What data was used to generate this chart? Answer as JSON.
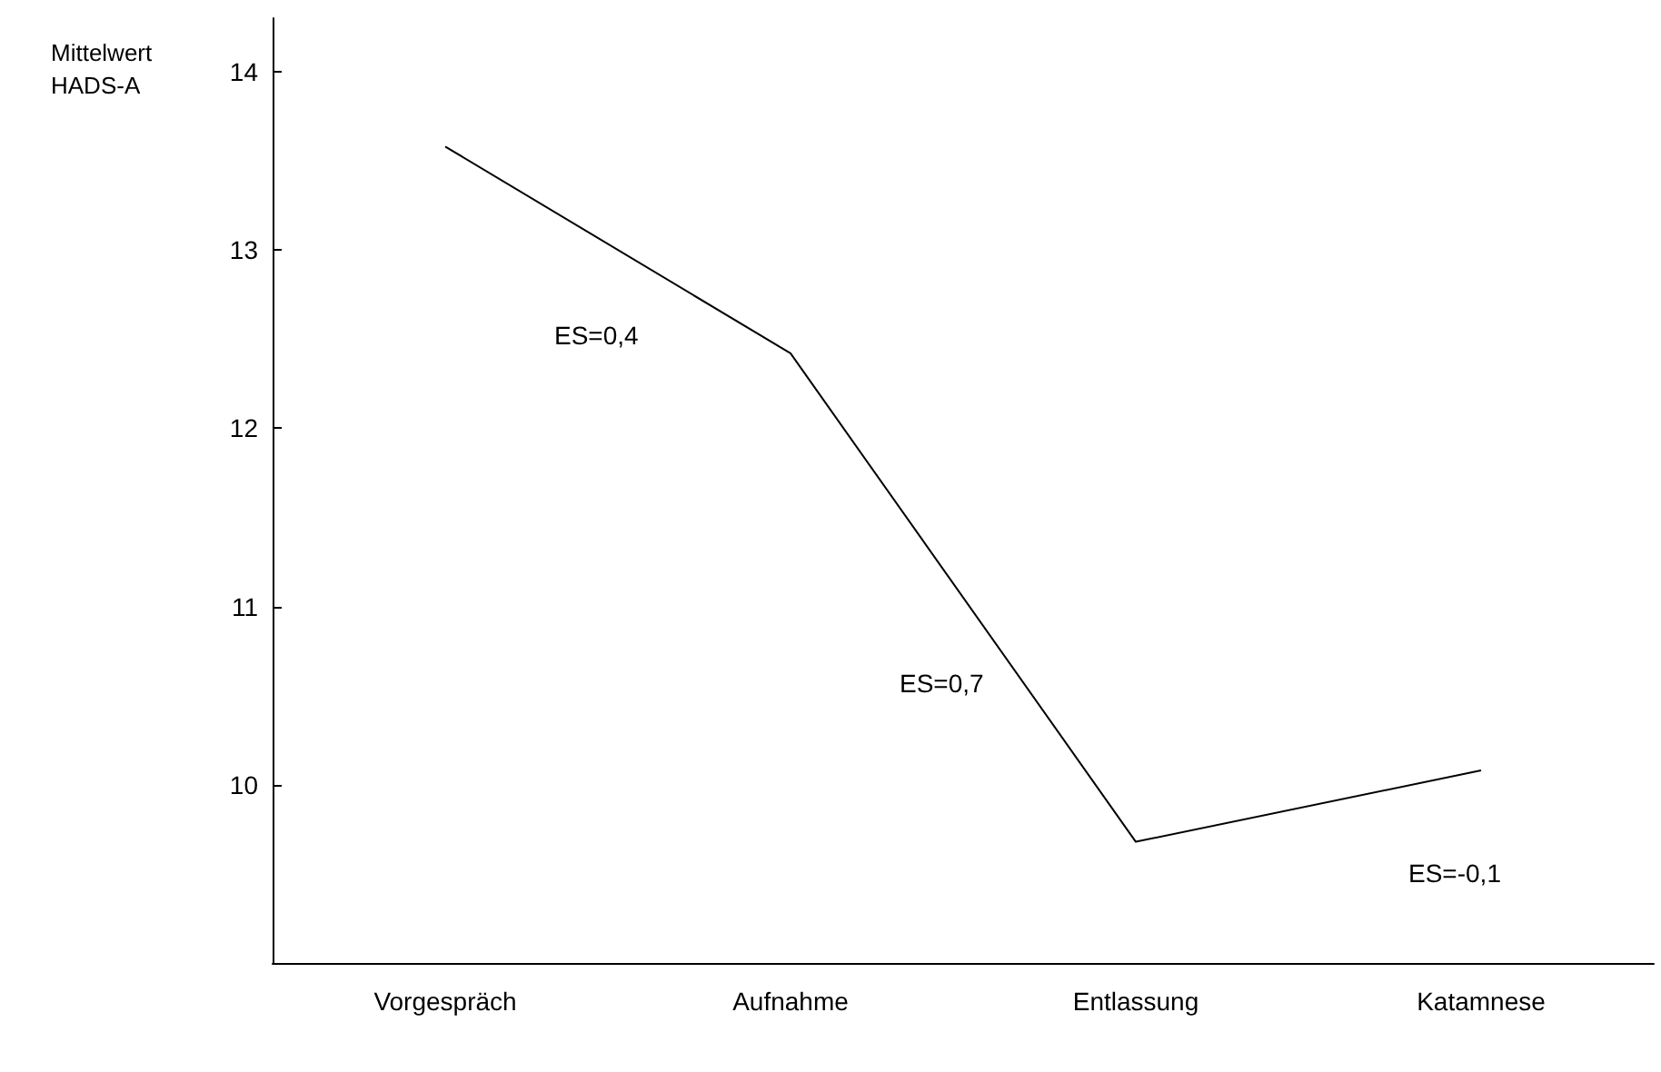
{
  "chart_data": {
    "type": "line",
    "ylabel": "Mittelwert HADS-A",
    "categories": [
      "Vorgespräch",
      "Aufnahme",
      "Entlassung",
      "Katamnese"
    ],
    "series": [
      {
        "color": "#000000",
        "values": [
          13.58,
          12.42,
          9.68,
          10.08
        ]
      }
    ],
    "ylim": [
      9,
      14.3
    ],
    "yticks": [
      10,
      11,
      12,
      13,
      14
    ],
    "annotations": [
      "ES=0,4",
      "ES=0,7",
      "ES=-0,1"
    ],
    "grid": false,
    "marker": "none",
    "line_style": "solid"
  }
}
